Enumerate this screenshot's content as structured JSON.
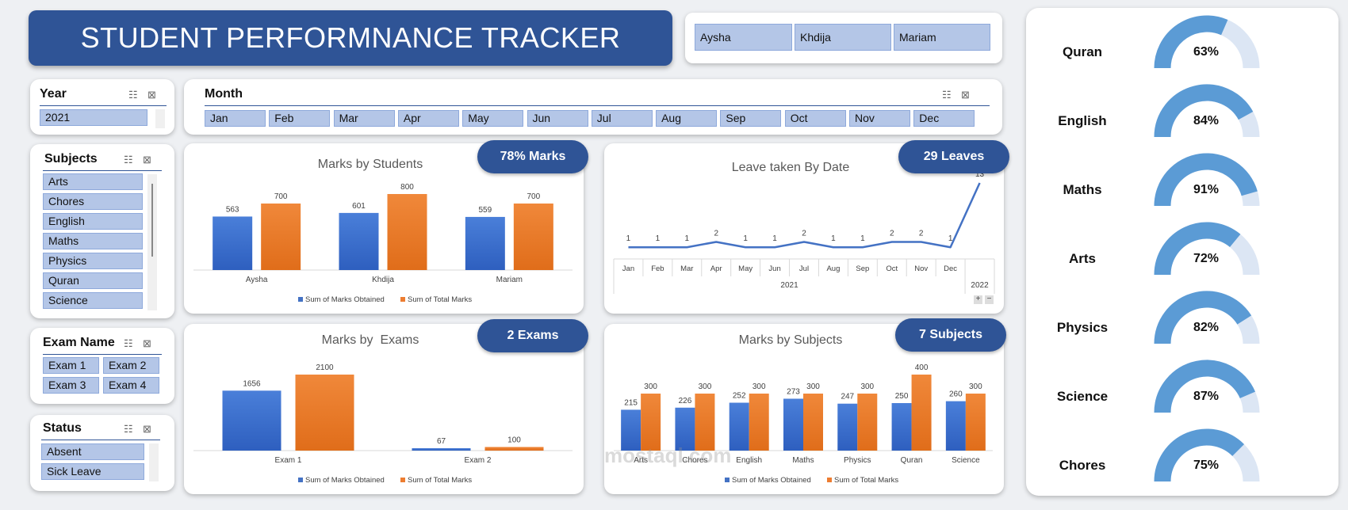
{
  "header": {
    "title": "STUDENT PERFORMNANCE TRACKER"
  },
  "students": [
    "Aysha",
    "Khdija",
    "Mariam"
  ],
  "year_slicer": {
    "title": "Year",
    "items": [
      "2021"
    ]
  },
  "month_slicer": {
    "title": "Month",
    "items": [
      "Jan",
      "Feb",
      "Mar",
      "Apr",
      "May",
      "Jun",
      "Jul",
      "Aug",
      "Sep",
      "Oct",
      "Nov",
      "Dec"
    ]
  },
  "subjects_slicer": {
    "title": "Subjects",
    "items": [
      "Arts",
      "Chores",
      "English",
      "Maths",
      "Physics",
      "Quran",
      "Science"
    ]
  },
  "exam_slicer": {
    "title": "Exam Name",
    "items": [
      "Exam 1",
      "Exam 2",
      "Exam 3",
      "Exam 4"
    ]
  },
  "status_slicer": {
    "title": "Status",
    "items": [
      "Absent",
      "Sick Leave"
    ]
  },
  "kpis": {
    "marks": "78% Marks",
    "leaves": "29 Leaves",
    "exams": "2 Exams",
    "subjects": "7 Subjects"
  },
  "colors": {
    "banner": "#2f5496",
    "series_obtained": "#4472c4",
    "series_total": "#ed7d31",
    "gauge_fill": "#5b9bd5",
    "gauge_track": "#dce6f4"
  },
  "icons": {
    "multi_select": "multi-select-icon",
    "clear_filter": "clear-filter-icon"
  },
  "legend": {
    "obtained": "Sum of Marks Obtained",
    "total": "Sum of Total Marks"
  },
  "chart_data": [
    {
      "type": "bar",
      "title": "Marks by Students",
      "categories": [
        "Aysha",
        "Khdija",
        "Mariam"
      ],
      "series": [
        {
          "name": "Sum of Marks Obtained",
          "values": [
            563,
            601,
            559
          ]
        },
        {
          "name": "Sum of Total Marks",
          "values": [
            700,
            800,
            700
          ]
        }
      ],
      "ylim": [
        0,
        800
      ]
    },
    {
      "type": "line",
      "title": "Leave taken By Date",
      "categories": [
        "Jan",
        "Feb",
        "Mar",
        "Apr",
        "May",
        "Jun",
        "Jul",
        "Aug",
        "Sep",
        "Oct",
        "Nov",
        "Dec",
        ""
      ],
      "groups": [
        {
          "label": "2021"
        },
        {
          "label": "2022"
        }
      ],
      "values": [
        1,
        1,
        1,
        2,
        1,
        1,
        2,
        1,
        1,
        2,
        2,
        1,
        13
      ],
      "ylim": [
        0,
        13
      ]
    },
    {
      "type": "bar",
      "title": "Marks by  Exams",
      "categories": [
        "Exam 1",
        "Exam 2"
      ],
      "series": [
        {
          "name": "Sum of Marks Obtained",
          "values": [
            1656,
            67
          ]
        },
        {
          "name": "Sum of Total Marks",
          "values": [
            2100,
            100
          ]
        }
      ],
      "ylim": [
        0,
        2100
      ]
    },
    {
      "type": "bar",
      "title": "Marks by Subjects",
      "categories": [
        "Arts",
        "Chores",
        "English",
        "Maths",
        "Physics",
        "Quran",
        "Science"
      ],
      "series": [
        {
          "name": "Sum of Marks Obtained",
          "values": [
            215,
            226,
            252,
            273,
            247,
            250,
            260
          ]
        },
        {
          "name": "Sum of Total Marks",
          "values": [
            300,
            300,
            300,
            300,
            300,
            400,
            300
          ]
        }
      ],
      "ylim": [
        0,
        400
      ]
    },
    {
      "type": "gauge",
      "categories": [
        "Quran",
        "English",
        "Maths",
        "Arts",
        "Physics",
        "Science",
        "Chores"
      ],
      "values": [
        63,
        84,
        91,
        72,
        82,
        87,
        75
      ],
      "labels": [
        "63%",
        "84%",
        "91%",
        "72%",
        "82%",
        "87%",
        "75%"
      ]
    }
  ],
  "watermark": "mostaql.com"
}
